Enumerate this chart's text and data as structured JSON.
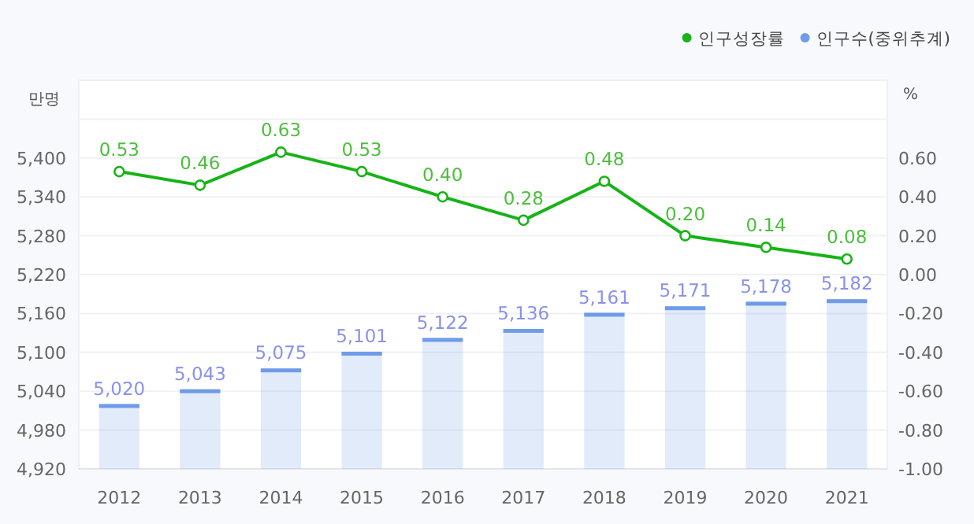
{
  "chart_data": {
    "type": "bar",
    "categories": [
      "2012",
      "2013",
      "2014",
      "2015",
      "2016",
      "2017",
      "2018",
      "2019",
      "2020",
      "2021"
    ],
    "series": [
      {
        "name": "인구성장률",
        "type": "line",
        "axis": "y2",
        "color": "#17b317",
        "values": [
          0.53,
          0.46,
          0.63,
          0.53,
          0.4,
          0.28,
          0.48,
          0.2,
          0.14,
          0.08
        ],
        "value_labels": [
          "0.53",
          "0.46",
          "0.63",
          "0.53",
          "0.40",
          "0.28",
          "0.48",
          "0.20",
          "0.14",
          "0.08"
        ]
      },
      {
        "name": "인구수(중위추계)",
        "color": "#6f9be8",
        "values": [
          5020,
          5043,
          5075,
          5101,
          5122,
          5136,
          5161,
          5171,
          5178,
          5182
        ],
        "value_labels": [
          "5,020",
          "5,043",
          "5,075",
          "5,101",
          "5,122",
          "5,136",
          "5,161",
          "5,171",
          "5,178",
          "5,182"
        ]
      }
    ],
    "ylabel": "만명",
    "y2label": "%",
    "ylim": [
      4920,
      5520
    ],
    "yticks": [
      {
        "value": 4920,
        "label": "4,920"
      },
      {
        "value": 4980,
        "label": "4,980"
      },
      {
        "value": 5040,
        "label": "5,040"
      },
      {
        "value": 5100,
        "label": "5,100"
      },
      {
        "value": 5160,
        "label": "5,160"
      },
      {
        "value": 5220,
        "label": "5,220"
      },
      {
        "value": 5280,
        "label": "5,280"
      },
      {
        "value": 5340,
        "label": "5,340"
      },
      {
        "value": 5400,
        "label": "5,400"
      },
      {
        "value": 5460,
        "label": null
      }
    ],
    "y2lim": [
      -1,
      1
    ],
    "y2ticks": [
      {
        "value": -1,
        "label": "-1.00"
      },
      {
        "value": -0.8,
        "label": "-0.80"
      },
      {
        "value": -0.6,
        "label": "-0.60"
      },
      {
        "value": -0.4,
        "label": "-0.40"
      },
      {
        "value": -0.2,
        "label": "-0.20"
      },
      {
        "value": 0,
        "label": "0.00"
      },
      {
        "value": 0.2,
        "label": "0.20"
      },
      {
        "value": 0.4,
        "label": "0.40"
      },
      {
        "value": 0.6,
        "label": "0.60"
      },
      {
        "value": 0.8,
        "label": null
      }
    ],
    "grid": "y",
    "legend": "top right",
    "marker": "circle"
  }
}
